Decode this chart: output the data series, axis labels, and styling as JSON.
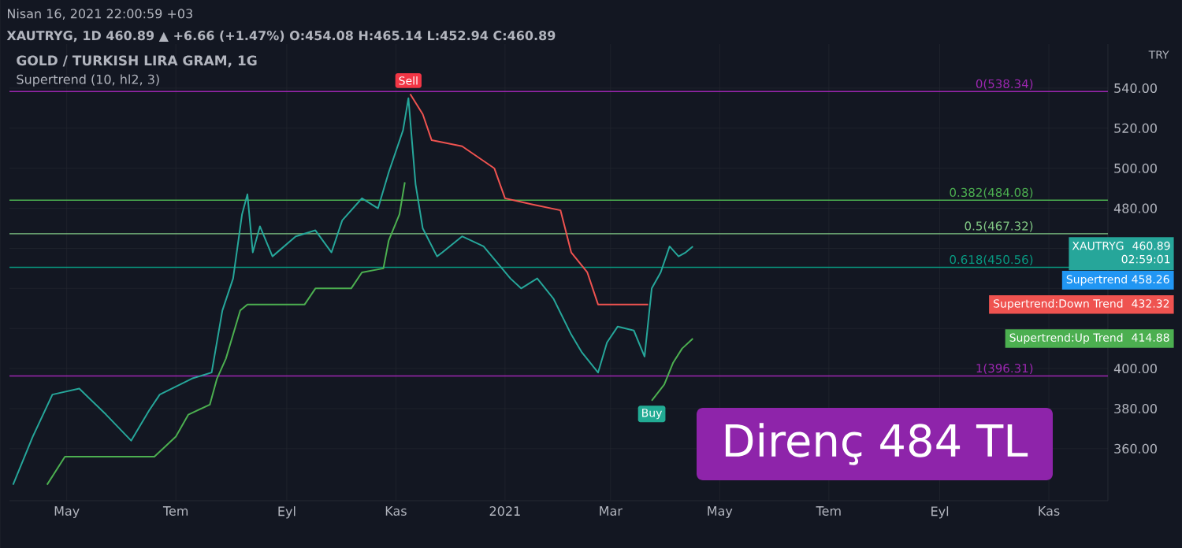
{
  "chart_data": {
    "type": "line",
    "title": "GOLD / TURKISH LIRA GRAM, 1G",
    "subtitle": "Supertrend (10, hl2, 3)",
    "ylabel": "TRY",
    "xlim": [
      "2020-03-30",
      "2021-12-04"
    ],
    "xticks": [
      {
        "value": "2020-05-01",
        "label": "May"
      },
      {
        "value": "2020-07-01",
        "label": "Tem"
      },
      {
        "value": "2020-09-01",
        "label": "Eyl"
      },
      {
        "value": "2020-11-01",
        "label": "Kas"
      },
      {
        "value": "2021-01-01",
        "label": "2021"
      },
      {
        "value": "2021-03-01",
        "label": "Mar"
      },
      {
        "value": "2021-05-01",
        "label": "May"
      },
      {
        "value": "2021-07-01",
        "label": "Tem"
      },
      {
        "value": "2021-09-01",
        "label": "Eyl"
      },
      {
        "value": "2021-11-01",
        "label": "Kas"
      }
    ],
    "ylim": [
      334,
      562
    ],
    "yticks": [
      {
        "value": 360,
        "label": "360.00"
      },
      {
        "value": 380,
        "label": "380.00"
      },
      {
        "value": 400,
        "label": "400.00"
      },
      {
        "value": 420,
        "label": null
      },
      {
        "value": 440,
        "label": null
      },
      {
        "value": 460,
        "label": null
      },
      {
        "value": 480,
        "label": "480.00"
      },
      {
        "value": 500,
        "label": "500.00"
      },
      {
        "value": 520,
        "label": "520.00"
      },
      {
        "value": 540,
        "label": "540.00"
      }
    ],
    "grid": true,
    "series": [
      {
        "name": "XAUTRYG",
        "color": "#26a69a",
        "x": [
          "2020-04-01",
          "2020-04-12",
          "2020-04-23",
          "2020-05-08",
          "2020-05-23",
          "2020-06-06",
          "2020-06-16",
          "2020-06-22",
          "2020-07-10",
          "2020-07-21",
          "2020-07-27",
          "2020-08-02",
          "2020-08-07",
          "2020-08-10",
          "2020-08-13",
          "2020-08-17",
          "2020-08-24",
          "2020-09-06",
          "2020-09-17",
          "2020-09-26",
          "2020-10-02",
          "2020-10-13",
          "2020-10-22",
          "2020-10-28",
          "2020-11-05",
          "2020-11-08",
          "2020-11-12",
          "2020-11-16",
          "2020-11-24",
          "2020-11-27",
          "2020-12-08",
          "2020-12-20",
          "2021-01-04",
          "2021-01-10",
          "2021-01-19",
          "2021-01-28",
          "2021-02-07",
          "2021-02-13",
          "2021-02-22",
          "2021-02-27",
          "2021-03-05",
          "2021-03-14",
          "2021-03-20",
          "2021-03-24",
          "2021-03-29",
          "2021-04-03",
          "2021-04-08",
          "2021-04-12",
          "2021-04-16"
        ],
        "values": [
          342,
          366,
          387,
          390,
          377,
          364,
          379,
          387,
          395,
          398,
          429,
          445,
          477,
          487,
          458,
          471,
          456,
          466,
          469,
          458,
          474,
          485,
          480,
          498,
          519,
          535,
          492,
          470,
          456,
          458,
          466,
          461,
          445,
          440,
          445,
          435,
          417,
          408,
          398,
          413,
          421,
          419,
          406,
          440,
          448,
          461,
          456,
          458,
          461
        ]
      },
      {
        "name": "Supertrend:Down Trend",
        "color": "#ef5350",
        "x": [
          "2020-11-09",
          "2020-11-16",
          "2020-11-21",
          "2020-12-08",
          "2020-12-26",
          "2021-01-01",
          "2021-01-16",
          "2021-02-01",
          "2021-02-07",
          "2021-02-16",
          "2021-02-22",
          "2021-03-22"
        ],
        "values": [
          537,
          527,
          514,
          511,
          500,
          485,
          482,
          479,
          458,
          448,
          432,
          432
        ]
      },
      {
        "name": "Supertrend:Up Trend",
        "color": "#4caf50",
        "x": [
          "2020-04-20",
          "2020-04-30",
          "2020-06-19",
          "2020-07-01",
          "2020-07-08",
          "2020-07-20",
          "2020-07-24",
          "2020-07-29",
          "2020-08-06",
          "2020-08-10",
          "2020-09-11",
          "2020-09-17",
          "2020-10-07",
          "2020-10-13",
          "2020-10-25",
          "2020-10-28",
          "2020-11-03",
          "2020-11-06",
          "2021-01-01",
          "2021-03-24",
          "2021-03-31",
          "2021-04-05",
          "2021-04-10",
          "2021-04-16"
        ],
        "values": [
          342,
          356,
          356,
          366,
          377,
          382,
          395,
          405,
          429,
          432,
          432,
          440,
          440,
          448,
          450,
          464,
          477,
          493,
          null,
          384,
          392,
          403,
          410,
          415
        ]
      }
    ],
    "ref_lines": [
      {
        "axis": "y",
        "value": 538.34,
        "label": "0(538.34)",
        "color": "#9c27b0"
      },
      {
        "axis": "y",
        "value": 484.08,
        "label": "0.382(484.08)",
        "color": "#4caf50"
      },
      {
        "axis": "y",
        "value": 467.32,
        "label": "0.5(467.32)",
        "color": "#81c784"
      },
      {
        "axis": "y",
        "value": 450.56,
        "label": "0.618(450.56)",
        "color": "#089981"
      },
      {
        "axis": "y",
        "value": 396.31,
        "label": "1(396.31)",
        "color": "#9c27b0"
      }
    ],
    "annotations": [
      "Nisan 16, 2021 22:00:59 +03",
      "XAUTRYG, 1D 460.89 ▲ +6.66 (+1.47%) O:454.08 H:465.14 L:452.94 C:460.89",
      "Direnç 484 TL",
      "Supertrend 458.26",
      "02:59:01",
      "460.89",
      "432.32",
      "414.88",
      {
        "text": "Sell",
        "x": "2020-11-08",
        "y": 538.34
      },
      {
        "text": "Buy",
        "x": "2021-03-24",
        "y": 384
      }
    ]
  }
}
